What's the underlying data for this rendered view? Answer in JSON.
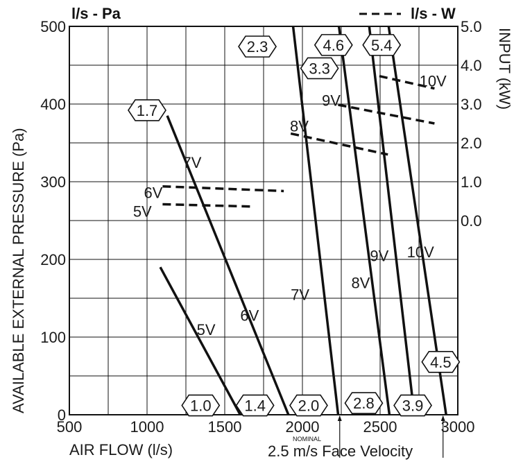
{
  "chart_data": {
    "type": "line",
    "legend": {
      "solid_label": "l/s - Pa",
      "dashed_label": "l/s - W"
    },
    "x_axis": {
      "label": "AIR FLOW (l/s)",
      "range": [
        500,
        3000
      ],
      "ticks": [
        "500",
        "1000",
        "1500",
        "2000",
        "2500",
        "3000"
      ]
    },
    "y_axis_left": {
      "label": "AVAILABLE EXTERNAL PRESSURE (Pa)",
      "range": [
        0,
        500
      ],
      "ticks": [
        "0",
        "100",
        "200",
        "300",
        "400",
        "500"
      ]
    },
    "y_axis_right": {
      "label": "INPUT (kW)",
      "ticks": [
        {
          "label": "5.0",
          "pa": 500
        },
        {
          "label": "4.0",
          "pa": 450
        },
        {
          "label": "3.0",
          "pa": 400
        },
        {
          "label": "2.0",
          "pa": 350
        },
        {
          "label": "1.0",
          "pa": 300
        },
        {
          "label": "0.0",
          "pa": 250
        }
      ]
    },
    "face_velocity": {
      "nominal_text": "NOMINAL",
      "label": "2.5 m/s Face Velocity",
      "markers": [
        2240,
        2905
      ]
    },
    "pressure_series": [
      {
        "name": "5V",
        "points": [
          [
            1085,
            190
          ],
          [
            1600,
            0
          ]
        ],
        "label_at": [
          1380,
          110
        ]
      },
      {
        "name": "6V",
        "points": [
          [
            1130,
            385
          ],
          [
            1910,
            0
          ]
        ],
        "label_at": [
          1660,
          128
        ]
      },
      {
        "name": "7V",
        "points": [
          [
            1940,
            500
          ],
          [
            2230,
            0
          ]
        ],
        "label_at": [
          1985,
          155
        ],
        "label2_at": [
          1290,
          325
        ]
      },
      {
        "name": "8V",
        "points": [
          [
            2235,
            500
          ],
          [
            2560,
            0
          ]
        ],
        "label_at": [
          2375,
          170
        ]
      },
      {
        "name": "9V",
        "points": [
          [
            2430,
            500
          ],
          [
            2720,
            0
          ]
        ],
        "label_at": [
          2495,
          205
        ]
      },
      {
        "name": "10V",
        "points": [
          [
            2555,
            500
          ],
          [
            2925,
            0
          ]
        ],
        "label_at": [
          2760,
          210
        ]
      }
    ],
    "power_series": [
      {
        "name": "5V",
        "points": [
          [
            1100,
            271
          ],
          [
            1680,
            268
          ]
        ],
        "label_at": [
          970,
          262
        ]
      },
      {
        "name": "6V",
        "points": [
          [
            1100,
            294
          ],
          [
            1880,
            288
          ]
        ],
        "label_at": [
          1040,
          286
        ]
      },
      {
        "name": "8V",
        "points": [
          [
            1925,
            362
          ],
          [
            2550,
            335
          ]
        ],
        "label_at": [
          1980,
          372
        ]
      },
      {
        "name": "9V",
        "points": [
          [
            2230,
            399
          ],
          [
            2850,
            375
          ]
        ],
        "label_at": [
          2185,
          405
        ]
      },
      {
        "name": "10V",
        "points": [
          [
            2495,
            436
          ],
          [
            2850,
            420
          ]
        ],
        "label_at": [
          2840,
          430
        ]
      }
    ],
    "velocity_markers": [
      {
        "label": "1.0",
        "at": [
          1345,
          12
        ]
      },
      {
        "label": "1.4",
        "at": [
          1695,
          12
        ]
      },
      {
        "label": "2.0",
        "at": [
          2040,
          12
        ]
      },
      {
        "label": "2.8",
        "at": [
          2395,
          15
        ]
      },
      {
        "label": "3.9",
        "at": [
          2710,
          12
        ]
      },
      {
        "label": "4.5",
        "at": [
          2890,
          68
        ]
      },
      {
        "label": "1.7",
        "at": [
          1000,
          392
        ]
      },
      {
        "label": "2.3",
        "at": [
          1710,
          474
        ]
      },
      {
        "label": "3.3",
        "at": [
          2110,
          446
        ]
      },
      {
        "label": "4.6",
        "at": [
          2200,
          476
        ]
      },
      {
        "label": "5.4",
        "at": [
          2510,
          476
        ]
      }
    ]
  }
}
